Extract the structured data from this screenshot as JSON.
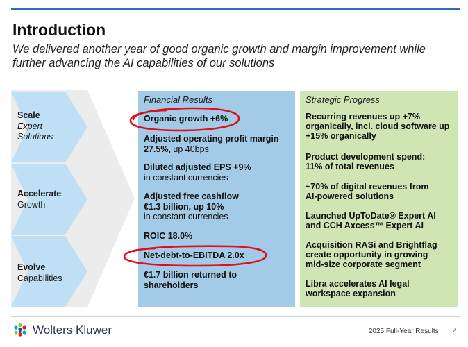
{
  "slide": {
    "title": "Introduction",
    "subtitle": "We delivered another year of good organic growth and margin improvement while further advancing the AI capabilities of our solutions"
  },
  "chevrons": [
    {
      "line1": "Scale",
      "line2": "Expert",
      "line3": "Solutions"
    },
    {
      "line1": "Accelerate",
      "line2": "Growth"
    },
    {
      "line1": "Evolve",
      "line2": "Capabilities"
    }
  ],
  "financial": {
    "heading": "Financial Results",
    "items": [
      {
        "bold": "Organic growth +6%",
        "normal": ""
      },
      {
        "bold": "Adjusted operating profit margin 27.5%,",
        "normal": " up 40bps"
      },
      {
        "bold": "Diluted adjusted EPS +9%",
        "normal": "in constant currencies"
      },
      {
        "bold": "Adjusted free cashflow €1.3 billion, up 10%",
        "normal": "in constant currencies"
      },
      {
        "bold": "ROIC 18.0%",
        "normal": ""
      },
      {
        "bold": "Net-debt-to-EBITDA 2.0x",
        "normal": ""
      },
      {
        "bold": "€1.7 billion returned to shareholders",
        "normal": ""
      }
    ]
  },
  "strategic": {
    "heading": "Strategic Progress",
    "items": [
      "Recurring revenues up +7% organically, incl. cloud software up +15% organically",
      "Product development spend: 11% of total revenues",
      "~70% of digital revenues from AI-powered solutions",
      "Launched UpToDate® Expert AI and CCH Axcess™ Expert AI",
      "Acquisition RASi and Brightflag create opportunity in growing mid-size corporate segment",
      "Libra accelerates AI legal workspace expansion"
    ]
  },
  "footer": {
    "brand": "Wolters Kluwer",
    "report": "2025 Full-Year Results",
    "page": "4"
  },
  "colors": {
    "accent_rule": "#2f6fb3",
    "financial_bg": "#a3cae6",
    "strategic_bg": "#cfe6b4",
    "chevron_fill": "#bfe0f4",
    "annotation_red": "#e0101a"
  }
}
